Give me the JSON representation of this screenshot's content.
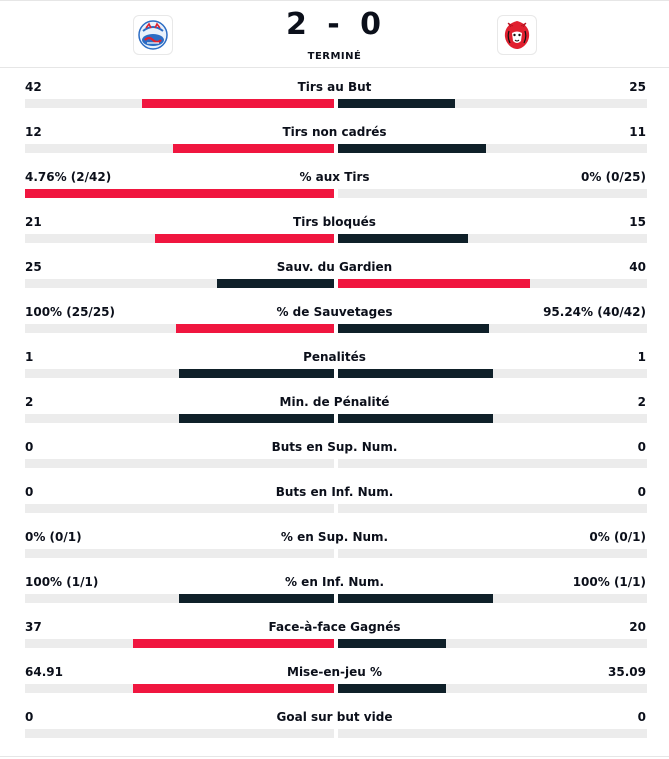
{
  "match": {
    "home_score": "2",
    "separator": "-",
    "away_score": "0",
    "status": "TERMINÉ",
    "home_logo": "zsc-lions-logo",
    "away_logo": "lausanne-hc-lion-logo"
  },
  "colors": {
    "leader": "#f0163f",
    "trailer": "#0f2029",
    "track": "#ececec"
  },
  "stats": [
    {
      "label": "Tirs au But",
      "left": "42",
      "right": "25",
      "left_share": 0.62,
      "right_share": 0.38,
      "left_leads": true
    },
    {
      "label": "Tirs non cadrés",
      "left": "12",
      "right": "11",
      "left_share": 0.52,
      "right_share": 0.48,
      "left_leads": true
    },
    {
      "label": "% aux Tirs",
      "left": "4.76% (2/42)",
      "right": "0% (0/25)",
      "left_share": 1.0,
      "right_share": 0.0,
      "left_leads": true
    },
    {
      "label": "Tirs bloqués",
      "left": "21",
      "right": "15",
      "left_share": 0.58,
      "right_share": 0.42,
      "left_leads": true
    },
    {
      "label": "Sauv. du Gardien",
      "left": "25",
      "right": "40",
      "left_share": 0.38,
      "right_share": 0.62,
      "left_leads": false
    },
    {
      "label": "% de Sauvetages",
      "left": "100% (25/25)",
      "right": "95.24% (40/42)",
      "left_share": 0.51,
      "right_share": 0.49,
      "left_leads": true
    },
    {
      "label": "Penalités",
      "left": "1",
      "right": "1",
      "left_share": 0.5,
      "right_share": 0.5,
      "left_leads": null
    },
    {
      "label": "Min. de Pénalité",
      "left": "2",
      "right": "2",
      "left_share": 0.5,
      "right_share": 0.5,
      "left_leads": null
    },
    {
      "label": "Buts en Sup. Num.",
      "left": "0",
      "right": "0",
      "left_share": 0,
      "right_share": 0,
      "left_leads": null
    },
    {
      "label": "Buts en Inf. Num.",
      "left": "0",
      "right": "0",
      "left_share": 0,
      "right_share": 0,
      "left_leads": null
    },
    {
      "label": "% en Sup. Num.",
      "left": "0% (0/1)",
      "right": "0% (0/1)",
      "left_share": 0,
      "right_share": 0,
      "left_leads": null
    },
    {
      "label": "% en Inf. Num.",
      "left": "100% (1/1)",
      "right": "100% (1/1)",
      "left_share": 0.5,
      "right_share": 0.5,
      "left_leads": null
    },
    {
      "label": "Face-à-face Gagnés",
      "left": "37",
      "right": "20",
      "left_share": 0.65,
      "right_share": 0.35,
      "left_leads": true
    },
    {
      "label": "Mise-en-jeu %",
      "left": "64.91",
      "right": "35.09",
      "left_share": 0.65,
      "right_share": 0.35,
      "left_leads": true
    },
    {
      "label": "Goal sur but vide",
      "left": "0",
      "right": "0",
      "left_share": 0,
      "right_share": 0,
      "left_leads": null
    }
  ]
}
